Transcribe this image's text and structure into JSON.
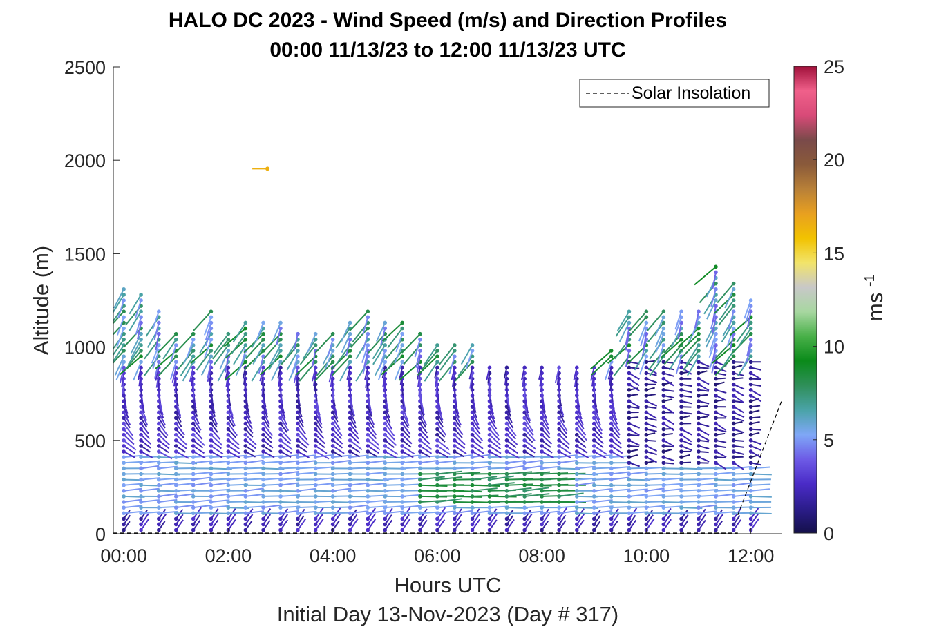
{
  "chart_data": {
    "type": "wind-barb-profile",
    "title": "HALO DC 2023 - Wind Speed (m/s) and Direction Profiles",
    "subtitle": "00:00 11/13/23 to 12:00 11/13/23  UTC",
    "xlabel": "Hours UTC",
    "xlabel2": "Initial Day 13-Nov-2023 (Day # 317)",
    "ylabel": "Altitude (m)",
    "xlim": [
      -0.2,
      12.6
    ],
    "ylim": [
      0,
      2500
    ],
    "x_ticks": [
      0,
      2,
      4,
      6,
      8,
      10,
      12
    ],
    "x_tick_labels": [
      "00:00",
      "02:00",
      "04:00",
      "06:00",
      "08:00",
      "10:00",
      "12:00"
    ],
    "y_ticks": [
      0,
      500,
      1000,
      1500,
      2000,
      2500
    ],
    "y_tick_labels": [
      "0",
      "500",
      "1000",
      "1500",
      "2000",
      "2500"
    ],
    "colorbar": {
      "label": "ms",
      "label_sup": "-1",
      "range": [
        0,
        25
      ],
      "ticks": [
        0,
        5,
        10,
        15,
        20,
        25
      ],
      "tick_labels": [
        "0",
        "5",
        "10",
        "15",
        "20",
        "25"
      ],
      "colors": [
        "#14104a",
        "#2c1d8c",
        "#4a2bc7",
        "#6d5be6",
        "#7fa7f7",
        "#4aa3a8",
        "#2f8f5a",
        "#0a8a1a",
        "#48b048",
        "#a7d7a0",
        "#c8c8c8",
        "#f2e46a",
        "#f2c200",
        "#e8a020",
        "#b88038",
        "#8a5a3a",
        "#7a4a4a",
        "#d84a78",
        "#f0608a",
        "#a0103a"
      ]
    },
    "legend": {
      "entries": [
        "Solar Insolation"
      ],
      "position": "top-right"
    },
    "grid": false,
    "profile_times_h": [
      0.0,
      0.33,
      0.67,
      1.0,
      1.33,
      1.67,
      2.0,
      2.33,
      2.67,
      3.0,
      3.33,
      3.67,
      4.0,
      4.33,
      4.67,
      5.0,
      5.33,
      5.67,
      6.0,
      6.33,
      6.67,
      7.0,
      7.33,
      7.67,
      8.0,
      8.33,
      8.67,
      9.0,
      9.33,
      9.67,
      10.0,
      10.33,
      10.67,
      11.0,
      11.33,
      11.67,
      12.0
    ],
    "profile_tops_m": [
      1320,
      1290,
      1200,
      1080,
      1080,
      1200,
      1080,
      1150,
      1150,
      1150,
      1080,
      1080,
      1080,
      1150,
      1200,
      1150,
      1150,
      1080,
      1020,
      1020,
      1020,
      900,
      900,
      900,
      900,
      900,
      900,
      900,
      990,
      1200,
      1200,
      1200,
      1200,
      1200,
      1450,
      1360,
      1260
    ],
    "solar_insolation": {
      "x": [
        11.75,
        12.6
      ],
      "y": [
        100,
        720
      ]
    }
  }
}
